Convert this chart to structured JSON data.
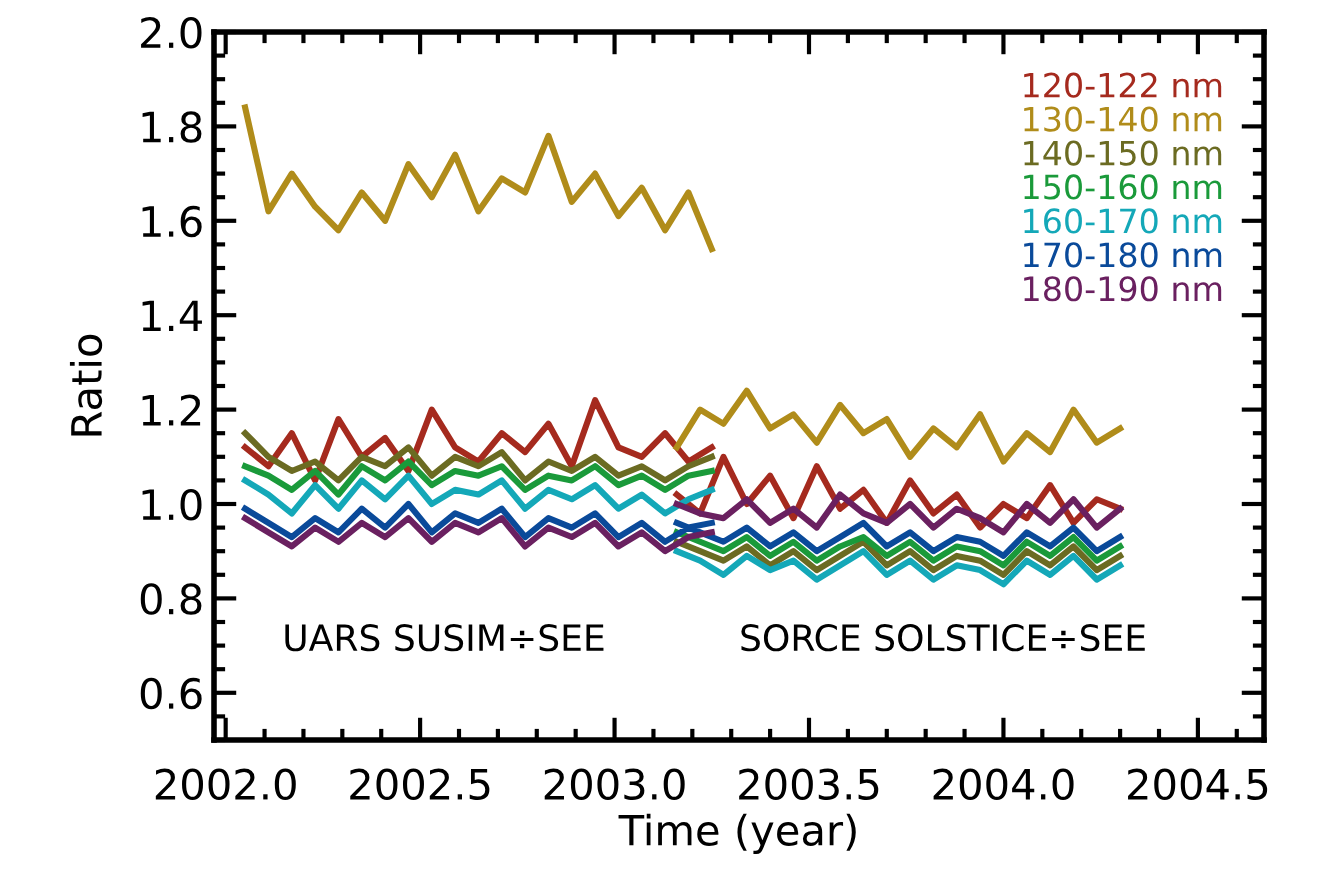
{
  "chart_data": {
    "type": "line",
    "xlabel": "Time (year)",
    "ylabel": "Ratio",
    "x": [
      2002.05,
      2002.11,
      2002.17,
      2002.23,
      2002.29,
      2002.35,
      2002.41,
      2002.47,
      2002.53,
      2002.59,
      2002.65,
      2002.71,
      2002.77,
      2002.83,
      2002.89,
      2002.95,
      2003.01,
      2003.07,
      2003.13,
      2003.19,
      2003.25,
      2003.2,
      2003.16,
      2003.22,
      2003.28,
      2003.34,
      2003.4,
      2003.46,
      2003.52,
      2003.58,
      2003.64,
      2003.7,
      2003.76,
      2003.82,
      2003.88,
      2003.94,
      2004.0,
      2004.06,
      2004.12,
      2004.18,
      2004.24,
      2004.3
    ],
    "series": [
      {
        "name": "120-122 nm",
        "color": "#a52a1e",
        "values": [
          1.12,
          1.08,
          1.15,
          1.05,
          1.18,
          1.1,
          1.14,
          1.07,
          1.2,
          1.12,
          1.09,
          1.15,
          1.11,
          1.17,
          1.08,
          1.22,
          1.12,
          1.1,
          1.15,
          1.09,
          1.12,
          null,
          1.02,
          0.98,
          1.1,
          1.0,
          1.06,
          0.97,
          1.08,
          0.99,
          1.03,
          0.96,
          1.05,
          0.98,
          1.02,
          0.95,
          1.0,
          0.97,
          1.04,
          0.96,
          1.01,
          0.99
        ]
      },
      {
        "name": "130-140 nm",
        "color": "#b08c1a",
        "values": [
          1.84,
          1.62,
          1.7,
          1.63,
          1.58,
          1.66,
          1.6,
          1.72,
          1.65,
          1.74,
          1.62,
          1.69,
          1.66,
          1.78,
          1.64,
          1.7,
          1.61,
          1.67,
          1.58,
          1.66,
          1.54,
          null,
          1.12,
          1.2,
          1.17,
          1.24,
          1.16,
          1.19,
          1.13,
          1.21,
          1.15,
          1.18,
          1.1,
          1.16,
          1.12,
          1.19,
          1.09,
          1.15,
          1.11,
          1.2,
          1.13,
          1.16
        ]
      },
      {
        "name": "140-150 nm",
        "color": "#6b6b22",
        "values": [
          1.15,
          1.1,
          1.07,
          1.09,
          1.05,
          1.1,
          1.08,
          1.12,
          1.06,
          1.1,
          1.08,
          1.11,
          1.05,
          1.09,
          1.07,
          1.1,
          1.06,
          1.08,
          1.05,
          1.08,
          1.1,
          null,
          0.92,
          0.9,
          0.88,
          0.91,
          0.87,
          0.9,
          0.86,
          0.89,
          0.92,
          0.87,
          0.9,
          0.86,
          0.89,
          0.88,
          0.85,
          0.9,
          0.87,
          0.91,
          0.86,
          0.89
        ]
      },
      {
        "name": "150-160 nm",
        "color": "#1a9a3a",
        "values": [
          1.08,
          1.06,
          1.03,
          1.07,
          1.02,
          1.08,
          1.05,
          1.09,
          1.04,
          1.07,
          1.06,
          1.08,
          1.03,
          1.06,
          1.05,
          1.08,
          1.04,
          1.06,
          1.03,
          1.06,
          1.07,
          null,
          0.94,
          0.92,
          0.9,
          0.93,
          0.89,
          0.92,
          0.88,
          0.91,
          0.93,
          0.89,
          0.92,
          0.88,
          0.91,
          0.9,
          0.87,
          0.92,
          0.89,
          0.93,
          0.88,
          0.91
        ]
      },
      {
        "name": "160-170 nm",
        "color": "#14a8b8",
        "values": [
          1.05,
          1.02,
          0.98,
          1.04,
          0.99,
          1.05,
          1.01,
          1.06,
          1.0,
          1.03,
          1.02,
          1.05,
          0.99,
          1.03,
          1.01,
          1.04,
          0.99,
          1.02,
          0.98,
          1.01,
          1.03,
          null,
          0.9,
          0.88,
          0.85,
          0.89,
          0.86,
          0.88,
          0.84,
          0.87,
          0.9,
          0.85,
          0.88,
          0.84,
          0.87,
          0.86,
          0.83,
          0.88,
          0.85,
          0.89,
          0.84,
          0.87
        ]
      },
      {
        "name": "170-180 nm",
        "color": "#0a4a9a",
        "values": [
          0.99,
          0.96,
          0.93,
          0.97,
          0.94,
          0.99,
          0.95,
          1.0,
          0.94,
          0.98,
          0.96,
          0.99,
          0.93,
          0.97,
          0.95,
          0.98,
          0.93,
          0.96,
          0.92,
          0.95,
          0.96,
          null,
          0.96,
          0.94,
          0.92,
          0.95,
          0.91,
          0.94,
          0.9,
          0.93,
          0.96,
          0.91,
          0.94,
          0.9,
          0.93,
          0.92,
          0.89,
          0.94,
          0.91,
          0.95,
          0.9,
          0.93
        ]
      },
      {
        "name": "180-190 nm",
        "color": "#6a2060",
        "values": [
          0.97,
          0.94,
          0.91,
          0.95,
          0.92,
          0.96,
          0.93,
          0.97,
          0.92,
          0.96,
          0.94,
          0.97,
          0.91,
          0.95,
          0.93,
          0.96,
          0.91,
          0.94,
          0.9,
          0.93,
          0.94,
          null,
          1.0,
          0.98,
          0.97,
          1.01,
          0.96,
          0.99,
          0.95,
          1.02,
          0.98,
          0.96,
          1.0,
          0.95,
          0.99,
          0.97,
          0.94,
          1.0,
          0.96,
          1.01,
          0.95,
          0.99
        ]
      }
    ],
    "xlim": [
      2001.97,
      2004.67
    ],
    "xticks": [
      {
        "value": 2002.0,
        "label": "2002.0"
      },
      {
        "value": 2002.5,
        "label": "2002.5"
      },
      {
        "value": 2003.0,
        "label": "2003.0"
      },
      {
        "value": 2003.5,
        "label": "2003.5"
      },
      {
        "value": 2004.0,
        "label": "2004.0"
      },
      {
        "value": 2004.5,
        "label": "2004.5"
      }
    ],
    "ylim": [
      0.5,
      2.0
    ],
    "yticks": [
      {
        "value": 0.6,
        "label": "0.6"
      },
      {
        "value": 0.8,
        "label": "0.8"
      },
      {
        "value": 1.0,
        "label": "1.0"
      },
      {
        "value": 1.2,
        "label": "1.2"
      },
      {
        "value": 1.4,
        "label": "1.4"
      },
      {
        "value": 1.6,
        "label": "1.6"
      },
      {
        "value": 1.8,
        "label": "1.8"
      },
      {
        "value": 2.0,
        "label": "2.0"
      }
    ],
    "annotations": [
      "UARS SUSIM÷SEE",
      "SORCE SOLSTICE÷SEE"
    ],
    "legend": "top right",
    "grid": false,
    "marker": "none",
    "line_style": "solid"
  }
}
